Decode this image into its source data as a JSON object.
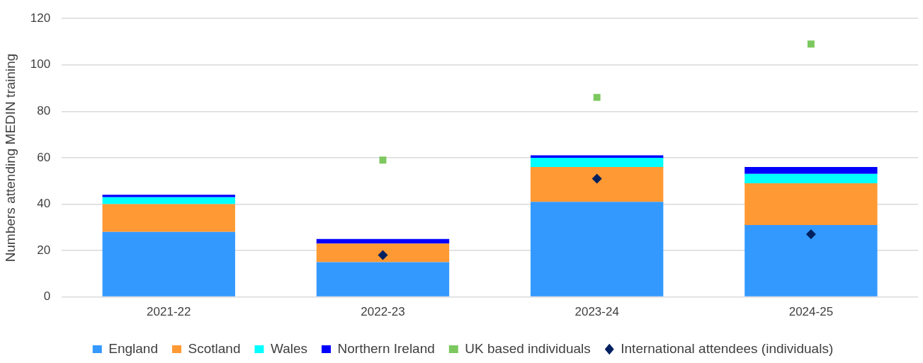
{
  "chart_data": {
    "type": "bar",
    "stacked": true,
    "ylabel": "Numbers attending MEDIN training",
    "categories": [
      "2021-22",
      "2022-23",
      "2023-24",
      "2024-25"
    ],
    "series": [
      {
        "name": "England",
        "color": "#3399ff",
        "values": [
          28,
          15,
          41,
          31
        ]
      },
      {
        "name": "Scotland",
        "color": "#ff9933",
        "values": [
          12,
          8,
          15,
          18
        ]
      },
      {
        "name": "Wales",
        "color": "#00ffff",
        "values": [
          3,
          0,
          4,
          4
        ]
      },
      {
        "name": "Northern Ireland",
        "color": "#0000ff",
        "values": [
          1,
          2,
          1,
          3
        ]
      },
      {
        "name": "UK based individuals",
        "type": "scatter",
        "marker": "square",
        "color": "#7cc85f",
        "x": [
          "2021-22",
          "2022-23",
          "2023-24",
          "2024-25"
        ],
        "values": [
          null,
          59,
          86,
          109
        ]
      },
      {
        "name": "International attendees (individuals)",
        "type": "scatter",
        "marker": "diamond",
        "color": "#002060",
        "x": [
          "2021-22",
          "2022-23",
          "2023-24",
          "2024-25"
        ],
        "values": [
          null,
          18,
          51,
          27
        ]
      }
    ],
    "ylim": [
      0,
      120
    ],
    "yticks": [
      0,
      20,
      40,
      60,
      80,
      100,
      120
    ],
    "grid": "y",
    "legend": "bottom"
  }
}
